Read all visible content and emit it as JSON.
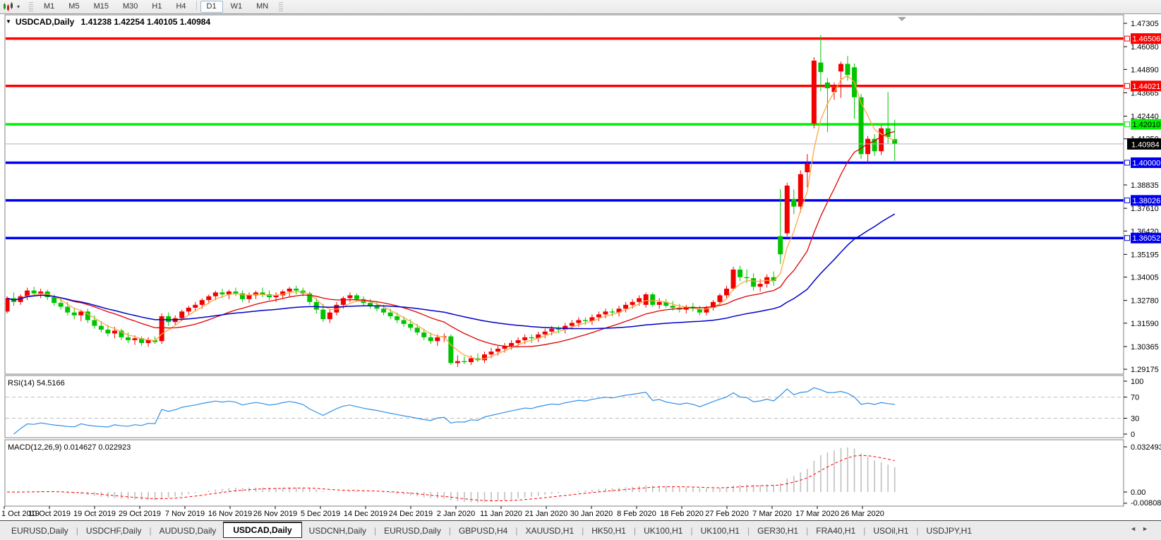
{
  "toolbar": {
    "chart_type_icon": "candlestick-chart-icon",
    "dropdown_caret": "▾",
    "timeframes": [
      "M1",
      "M5",
      "M15",
      "M30",
      "H1",
      "H4",
      "D1",
      "W1",
      "MN"
    ],
    "active_timeframe": "D1"
  },
  "header": {
    "dropdown_icon": "▼",
    "symbol": "USDCAD,Daily",
    "open": "1.41238",
    "high": "1.42254",
    "low": "1.40105",
    "close": "1.40984"
  },
  "chart_data": {
    "type": "candlestick",
    "symbol": "USDCAD",
    "timeframe": "Daily",
    "ylim": [
      1.2892,
      1.4775
    ],
    "colors": {
      "bull": "#F20000",
      "bear": "#00C400",
      "background": "#FFFFFF",
      "axis_text": "#000000",
      "current_price_line": "#B4B4B4"
    },
    "y_axis_ticks": [
      "1.47305",
      "1.46080",
      "1.44890",
      "1.43665",
      "1.42440",
      "1.41250",
      "1.38835",
      "1.37610",
      "1.36420",
      "1.35195",
      "1.34005",
      "1.32780",
      "1.31590",
      "1.30365",
      "1.29175"
    ],
    "x_axis_dates": [
      "1 Oct 2019",
      "10 Oct 2019",
      "19 Oct 2019",
      "29 Oct 2019",
      "7 Nov 2019",
      "16 Nov 2019",
      "26 Nov 2019",
      "5 Dec 2019",
      "14 Dec 2019",
      "24 Dec 2019",
      "2 Jan 2020",
      "11 Jan 2020",
      "21 Jan 2020",
      "30 Jan 2020",
      "8 Feb 2020",
      "18 Feb 2020",
      "27 Feb 2020",
      "7 Mar 2020",
      "17 Mar 2020",
      "26 Mar 2020"
    ],
    "h_lines": [
      {
        "price": 1.46506,
        "label": "1.46506",
        "color": "#FF0000",
        "text_color": "#FFFFFF"
      },
      {
        "price": 1.44021,
        "label": "1.44021",
        "color": "#FF0000",
        "text_color": "#FFFFFF"
      },
      {
        "price": 1.4201,
        "label": "1.42010",
        "color": "#00F000",
        "text_color": "#000000"
      },
      {
        "price": 1.4,
        "label": "1.40000",
        "color": "#0000F0",
        "text_color": "#FFFFFF"
      },
      {
        "price": 1.38026,
        "label": "1.38026",
        "color": "#0000F0",
        "text_color": "#FFFFFF"
      },
      {
        "price": 1.36052,
        "label": "1.36052",
        "color": "#0000F0",
        "text_color": "#FFFFFF"
      }
    ],
    "current_price": {
      "value": 1.40984,
      "label": "1.40984",
      "box_color": "#000000",
      "text_color": "#FFFFFF"
    },
    "moving_averages": [
      {
        "name": "fast",
        "method": "lwma",
        "period": 6,
        "color": "#FFA640",
        "width": 1.3
      },
      {
        "name": "medium",
        "method": "lwma",
        "period": 22,
        "color": "#E00000",
        "width": 1.3
      },
      {
        "name": "slow",
        "method": "lwma",
        "period": 60,
        "color": "#0000C8",
        "width": 1.5
      }
    ],
    "candles": [
      [
        1.322,
        1.33,
        1.321,
        1.329
      ],
      [
        1.329,
        1.332,
        1.325,
        1.327
      ],
      [
        1.327,
        1.331,
        1.3255,
        1.33
      ],
      [
        1.33,
        1.3345,
        1.328,
        1.333
      ],
      [
        1.333,
        1.335,
        1.33,
        1.3315
      ],
      [
        1.3315,
        1.334,
        1.329,
        1.3325
      ],
      [
        1.3325,
        1.3335,
        1.328,
        1.3295
      ],
      [
        1.3295,
        1.331,
        1.325,
        1.3265
      ],
      [
        1.3265,
        1.329,
        1.323,
        1.3245
      ],
      [
        1.3245,
        1.327,
        1.32,
        1.3215
      ],
      [
        1.3215,
        1.324,
        1.318,
        1.32
      ],
      [
        1.32,
        1.323,
        1.317,
        1.322
      ],
      [
        1.322,
        1.3235,
        1.316,
        1.3175
      ],
      [
        1.3175,
        1.32,
        1.313,
        1.3145
      ],
      [
        1.3145,
        1.317,
        1.311,
        1.3125
      ],
      [
        1.3125,
        1.315,
        1.309,
        1.3105
      ],
      [
        1.3105,
        1.314,
        1.308,
        1.312
      ],
      [
        1.312,
        1.313,
        1.307,
        1.3085
      ],
      [
        1.3085,
        1.311,
        1.3055,
        1.307
      ],
      [
        1.307,
        1.3095,
        1.3045,
        1.308
      ],
      [
        1.308,
        1.309,
        1.304,
        1.3055
      ],
      [
        1.3055,
        1.3085,
        1.3035,
        1.307
      ],
      [
        1.307,
        1.309,
        1.305,
        1.306
      ],
      [
        1.3065,
        1.321,
        1.305,
        1.3195
      ],
      [
        1.3195,
        1.3215,
        1.3145,
        1.3165
      ],
      [
        1.3165,
        1.32,
        1.315,
        1.3185
      ],
      [
        1.3185,
        1.323,
        1.317,
        1.322
      ],
      [
        1.322,
        1.325,
        1.32,
        1.324
      ],
      [
        1.324,
        1.327,
        1.322,
        1.3255
      ],
      [
        1.3255,
        1.329,
        1.3235,
        1.328
      ],
      [
        1.328,
        1.331,
        1.326,
        1.33
      ],
      [
        1.33,
        1.333,
        1.328,
        1.332
      ],
      [
        1.332,
        1.334,
        1.329,
        1.331
      ],
      [
        1.331,
        1.3335,
        1.3285,
        1.3325
      ],
      [
        1.3325,
        1.3345,
        1.33,
        1.3315
      ],
      [
        1.3315,
        1.333,
        1.327,
        1.3285
      ],
      [
        1.3285,
        1.332,
        1.3265,
        1.3305
      ],
      [
        1.3305,
        1.333,
        1.3285,
        1.332
      ],
      [
        1.332,
        1.3345,
        1.3295,
        1.331
      ],
      [
        1.331,
        1.333,
        1.328,
        1.3295
      ],
      [
        1.3295,
        1.332,
        1.327,
        1.3305
      ],
      [
        1.3305,
        1.3335,
        1.3285,
        1.3325
      ],
      [
        1.3325,
        1.335,
        1.33,
        1.334
      ],
      [
        1.334,
        1.3355,
        1.331,
        1.333
      ],
      [
        1.333,
        1.3345,
        1.33,
        1.3315
      ],
      [
        1.3315,
        1.3325,
        1.3255,
        1.327
      ],
      [
        1.327,
        1.329,
        1.321,
        1.323
      ],
      [
        1.323,
        1.326,
        1.3165,
        1.318
      ],
      [
        1.318,
        1.323,
        1.316,
        1.3215
      ],
      [
        1.3215,
        1.327,
        1.32,
        1.3255
      ],
      [
        1.3255,
        1.33,
        1.3235,
        1.329
      ],
      [
        1.329,
        1.332,
        1.327,
        1.3305
      ],
      [
        1.3305,
        1.3315,
        1.327,
        1.3285
      ],
      [
        1.3285,
        1.33,
        1.325,
        1.3265
      ],
      [
        1.3265,
        1.3285,
        1.3235,
        1.325
      ],
      [
        1.325,
        1.327,
        1.322,
        1.3235
      ],
      [
        1.3235,
        1.3255,
        1.32,
        1.3215
      ],
      [
        1.3215,
        1.3235,
        1.318,
        1.3195
      ],
      [
        1.3195,
        1.3215,
        1.316,
        1.3175
      ],
      [
        1.3175,
        1.3195,
        1.314,
        1.3155
      ],
      [
        1.3155,
        1.318,
        1.312,
        1.3135
      ],
      [
        1.3135,
        1.3155,
        1.3095,
        1.311
      ],
      [
        1.311,
        1.313,
        1.307,
        1.3085
      ],
      [
        1.3085,
        1.311,
        1.305,
        1.3065
      ],
      [
        1.3065,
        1.31,
        1.304,
        1.3085
      ],
      [
        1.3085,
        1.3105,
        1.306,
        1.309
      ],
      [
        1.309,
        1.31,
        1.294,
        1.295
      ],
      [
        1.295,
        1.299,
        1.293,
        1.296
      ],
      [
        1.296,
        1.2985,
        1.2945,
        1.2955
      ],
      [
        1.2955,
        1.299,
        1.294,
        1.2975
      ],
      [
        1.2975,
        1.3,
        1.2955,
        1.2965
      ],
      [
        1.2965,
        1.301,
        1.295,
        1.2995
      ],
      [
        1.2995,
        1.303,
        1.2975,
        1.301
      ],
      [
        1.301,
        1.304,
        1.299,
        1.3025
      ],
      [
        1.3025,
        1.3055,
        1.3005,
        1.304
      ],
      [
        1.304,
        1.307,
        1.302,
        1.3055
      ],
      [
        1.3055,
        1.3085,
        1.3035,
        1.307
      ],
      [
        1.307,
        1.31,
        1.305,
        1.3085
      ],
      [
        1.3085,
        1.31,
        1.3055,
        1.308
      ],
      [
        1.308,
        1.3115,
        1.306,
        1.31
      ],
      [
        1.31,
        1.313,
        1.308,
        1.3115
      ],
      [
        1.3115,
        1.3145,
        1.3095,
        1.313
      ],
      [
        1.313,
        1.3145,
        1.3105,
        1.3125
      ],
      [
        1.3125,
        1.316,
        1.3105,
        1.3145
      ],
      [
        1.3145,
        1.3175,
        1.3125,
        1.316
      ],
      [
        1.316,
        1.319,
        1.314,
        1.3175
      ],
      [
        1.3175,
        1.319,
        1.315,
        1.317
      ],
      [
        1.317,
        1.3205,
        1.315,
        1.319
      ],
      [
        1.319,
        1.322,
        1.317,
        1.3205
      ],
      [
        1.3205,
        1.3235,
        1.3185,
        1.322
      ],
      [
        1.322,
        1.3235,
        1.3195,
        1.3215
      ],
      [
        1.3215,
        1.325,
        1.3195,
        1.3235
      ],
      [
        1.3235,
        1.327,
        1.3215,
        1.3255
      ],
      [
        1.3255,
        1.3285,
        1.3235,
        1.327
      ],
      [
        1.327,
        1.3305,
        1.325,
        1.329
      ],
      [
        1.3255,
        1.332,
        1.324,
        1.331
      ],
      [
        1.331,
        1.332,
        1.3245,
        1.3255
      ],
      [
        1.3255,
        1.329,
        1.3235,
        1.327
      ],
      [
        1.327,
        1.3285,
        1.324,
        1.325
      ],
      [
        1.325,
        1.3275,
        1.3225,
        1.324
      ],
      [
        1.324,
        1.326,
        1.3215,
        1.323
      ],
      [
        1.323,
        1.3255,
        1.321,
        1.3245
      ],
      [
        1.3245,
        1.3265,
        1.322,
        1.3235
      ],
      [
        1.3235,
        1.325,
        1.32,
        1.3215
      ],
      [
        1.3215,
        1.325,
        1.32,
        1.324
      ],
      [
        1.324,
        1.328,
        1.3225,
        1.327
      ],
      [
        1.327,
        1.3315,
        1.3255,
        1.3305
      ],
      [
        1.3305,
        1.3355,
        1.329,
        1.334
      ],
      [
        1.334,
        1.3455,
        1.333,
        1.344
      ],
      [
        1.344,
        1.346,
        1.338,
        1.34
      ],
      [
        1.34,
        1.344,
        1.337,
        1.3395
      ],
      [
        1.3395,
        1.342,
        1.333,
        1.335
      ],
      [
        1.335,
        1.339,
        1.3325,
        1.3365
      ],
      [
        1.3365,
        1.3415,
        1.3345,
        1.34
      ],
      [
        1.34,
        1.343,
        1.3355,
        1.338
      ],
      [
        1.3615,
        1.386,
        1.347,
        1.352
      ],
      [
        1.363,
        1.3895,
        1.3615,
        1.388
      ],
      [
        1.381,
        1.386,
        1.373,
        1.377
      ],
      [
        1.377,
        1.396,
        1.374,
        1.394
      ],
      [
        1.395,
        1.4045,
        1.387,
        1.3995
      ],
      [
        1.4205,
        1.4553,
        1.418,
        1.4535
      ],
      [
        1.4525,
        1.4668,
        1.4375,
        1.4475
      ],
      [
        1.442,
        1.4445,
        1.416,
        1.439
      ],
      [
        1.437,
        1.442,
        1.433,
        1.4395
      ],
      [
        1.4478,
        1.453,
        1.434,
        1.4518
      ],
      [
        1.4518,
        1.456,
        1.443,
        1.446
      ],
      [
        1.45,
        1.452,
        1.423,
        1.4343
      ],
      [
        1.4343,
        1.436,
        1.402,
        1.4045
      ],
      [
        1.4045,
        1.414,
        1.4,
        1.4125
      ],
      [
        1.4125,
        1.415,
        1.4035,
        1.406
      ],
      [
        1.406,
        1.4195,
        1.404,
        1.418
      ],
      [
        1.418,
        1.437,
        1.41,
        1.4135
      ],
      [
        1.41238,
        1.42254,
        1.40105,
        1.40984
      ]
    ],
    "rsi": {
      "label": "RSI(14) 54.5166",
      "period": 14,
      "current_value": "54.5166",
      "levels": [
        "100",
        "70",
        "30",
        "0"
      ],
      "line_color": "#2E90E8",
      "level_line_color": "#BDBDBD"
    },
    "macd": {
      "label": "MACD(12,26,9) 0.014627 0.022923",
      "fast": 12,
      "slow": 26,
      "signal": 9,
      "main_value": "0.014627",
      "signal_value": "0.022923",
      "axis_labels": [
        "0.032493",
        "0.00",
        "-0.008086"
      ],
      "axis_values": [
        0.032493,
        0,
        -0.008086
      ],
      "bar_color": "#C0C0C0",
      "signal_color": "#FF0000"
    }
  },
  "tabbar": {
    "tabs": [
      {
        "label": "EURUSD,Daily",
        "active": false
      },
      {
        "label": "USDCHF,Daily",
        "active": false
      },
      {
        "label": "AUDUSD,Daily",
        "active": false
      },
      {
        "label": "USDCAD,Daily",
        "active": true
      },
      {
        "label": "USDCNH,Daily",
        "active": false
      },
      {
        "label": "EURUSD,Daily",
        "active": false
      },
      {
        "label": "GBPUSD,H4",
        "active": false
      },
      {
        "label": "XAUUSD,H1",
        "active": false
      },
      {
        "label": "HK50,H1",
        "active": false
      },
      {
        "label": "UK100,H1",
        "active": false
      },
      {
        "label": "UK100,H1",
        "active": false
      },
      {
        "label": "GER30,H1",
        "active": false
      },
      {
        "label": "FRA40,H1",
        "active": false
      },
      {
        "label": "USOil,H1",
        "active": false
      },
      {
        "label": "USDJPY,H1",
        "active": false
      }
    ],
    "left_arrow": "◄",
    "right_arrow": "►"
  }
}
